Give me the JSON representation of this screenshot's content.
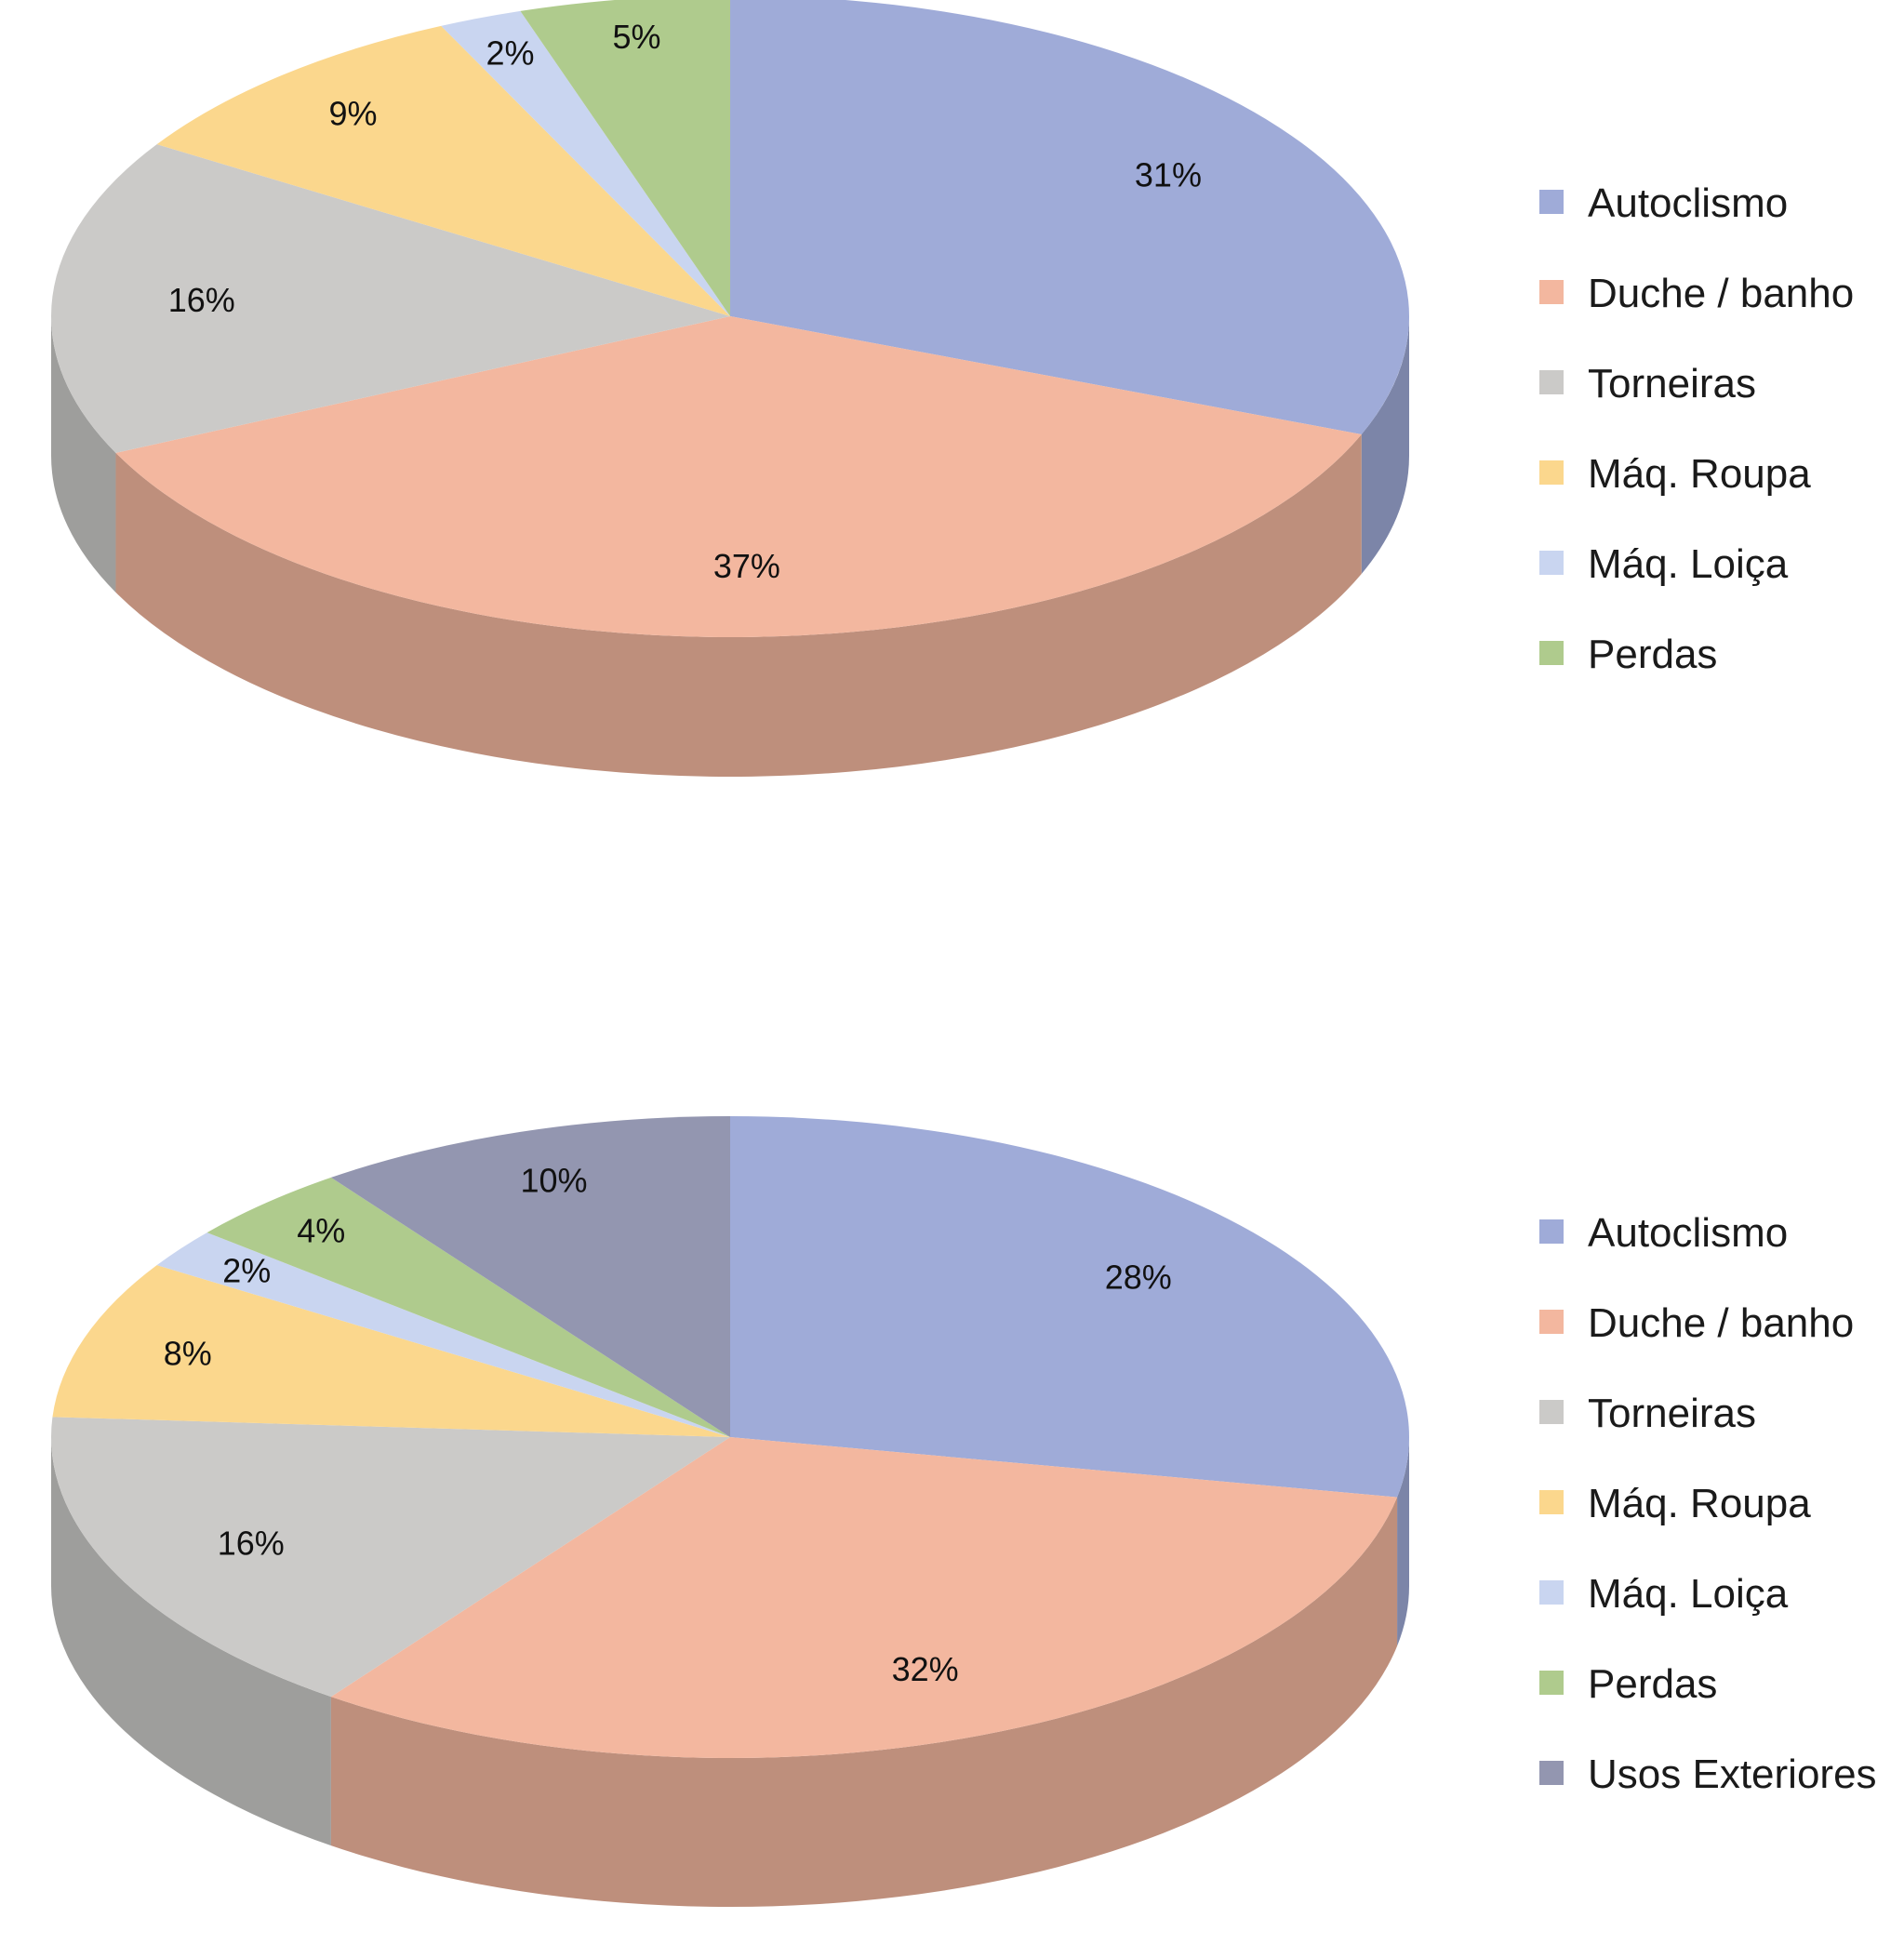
{
  "chart_data": [
    {
      "type": "pie",
      "title": "",
      "legend_position": "right",
      "slices": [
        {
          "label": "Autoclismo",
          "value": 31,
          "display": "31%",
          "color": "#9fabd8"
        },
        {
          "label": "Duche / banho",
          "value": 37,
          "display": "37%",
          "color": "#f3b79f"
        },
        {
          "label": "Torneiras",
          "value": 16,
          "display": "16%",
          "color": "#cbcac8"
        },
        {
          "label": "Máq. Roupa",
          "value": 9,
          "display": "9%",
          "color": "#fbd78d"
        },
        {
          "label": "Máq. Loiça",
          "value": 2,
          "display": "2%",
          "color": "#c9d5f0"
        },
        {
          "label": "Perdas",
          "value": 5,
          "display": "5%",
          "color": "#afcb8d"
        }
      ]
    },
    {
      "type": "pie",
      "title": "",
      "legend_position": "right",
      "slices": [
        {
          "label": "Autoclismo",
          "value": 28,
          "display": "28%",
          "color": "#9fabd8"
        },
        {
          "label": "Duche / banho",
          "value": 32,
          "display": "32%",
          "color": "#f3b79f"
        },
        {
          "label": "Torneiras",
          "value": 16,
          "display": "16%",
          "color": "#cbcac8"
        },
        {
          "label": "Máq. Roupa",
          "value": 8,
          "display": "8%",
          "color": "#fbd78d"
        },
        {
          "label": "Máq. Loiça",
          "value": 2,
          "display": "2%",
          "color": "#c9d5f0"
        },
        {
          "label": "Perdas",
          "value": 4,
          "display": "4%",
          "color": "#afcb8d"
        },
        {
          "label": "Usos Exteriores",
          "value": 10,
          "display": "10%",
          "color": "#9396b0"
        }
      ]
    }
  ]
}
